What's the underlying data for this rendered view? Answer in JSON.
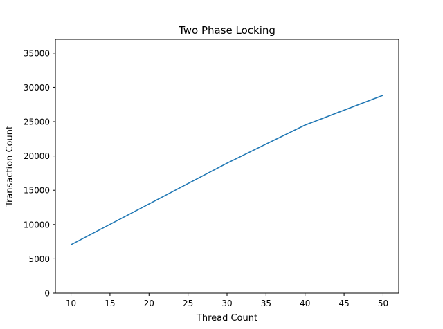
{
  "chart_data": {
    "type": "line",
    "title": "Two Phase Locking",
    "xlabel": "Thread Count",
    "ylabel": "Transaction Count",
    "x": [
      10,
      20,
      30,
      40,
      50
    ],
    "series": [
      {
        "values": [
          7050,
          13000,
          18950,
          24500,
          28850
        ],
        "color": "#1f77b4"
      }
    ],
    "xlim": [
      8,
      52
    ],
    "ylim": [
      0,
      37000
    ],
    "xticks": [
      10,
      15,
      20,
      25,
      30,
      35,
      40,
      45,
      50
    ],
    "yticks": [
      0,
      5000,
      10000,
      15000,
      20000,
      25000,
      30000,
      35000
    ],
    "grid": false,
    "legend": "none"
  }
}
